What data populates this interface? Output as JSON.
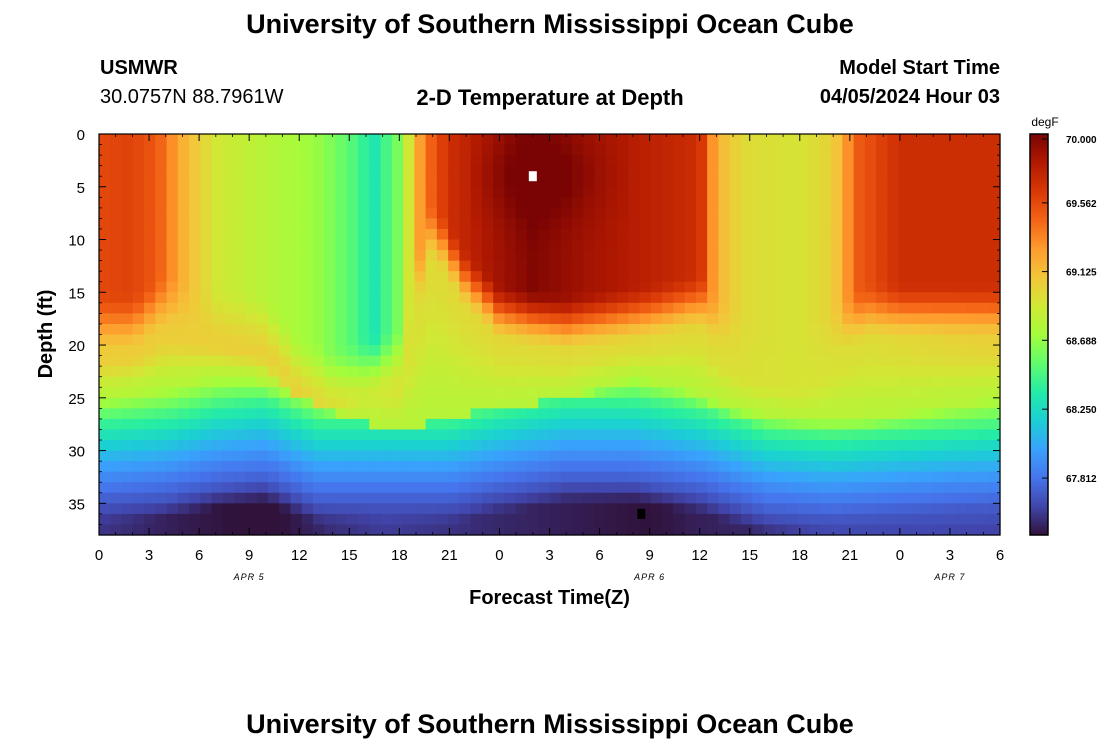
{
  "title": "University of Southern Mississippi Ocean Cube",
  "station": {
    "id": "USMWR",
    "coords": "30.0757N  88.7961W"
  },
  "plot_title": "2-D Temperature at Depth",
  "model_start": {
    "label": "Model Start Time",
    "value": "04/05/2024 Hour 03"
  },
  "footer_title": "University of Southern Mississippi Ocean Cube",
  "colors": {
    "max_marker": "#ffffff",
    "min_marker": "#000000",
    "colormap": [
      "#30123b",
      "#4145ab",
      "#4675ed",
      "#39a2fc",
      "#1bcfd4",
      "#24eca6",
      "#61fc6c",
      "#a4fc3b",
      "#d1e834",
      "#f3c63a",
      "#fe9b2d",
      "#f36315",
      "#d93806",
      "#b11901",
      "#7a0403"
    ]
  },
  "chart_data": {
    "type": "heatmap",
    "title": "2-D Temperature at Depth",
    "xlabel": "Forecast Time(Z)",
    "ylabel": "Depth (ft)",
    "x_unit": "hours since model start (04/05/2024 Hour 03)",
    "x_tick_labels": [
      "0",
      "3",
      "6",
      "9",
      "12",
      "15",
      "18",
      "21",
      "0",
      "3",
      "6",
      "9",
      "12",
      "15",
      "18",
      "21",
      "0",
      "3",
      "6"
    ],
    "date_labels": [
      "APR 5",
      "APR 6",
      "APR 7"
    ],
    "xlim": [
      0,
      54
    ],
    "ylim": [
      0,
      38
    ],
    "y_ticks": [
      0,
      5,
      10,
      15,
      20,
      25,
      30,
      35
    ],
    "y_inverted": true,
    "colorbar": {
      "label": "degF",
      "ticks": [
        "70.000",
        "69.562",
        "69.125",
        "68.688",
        "68.250",
        "67.812"
      ],
      "range": [
        67.45,
        70.0
      ]
    },
    "markers": {
      "max": {
        "x": 26,
        "y": 4
      },
      "min": {
        "x": 32.5,
        "y": 36
      }
    },
    "grid": false
  }
}
